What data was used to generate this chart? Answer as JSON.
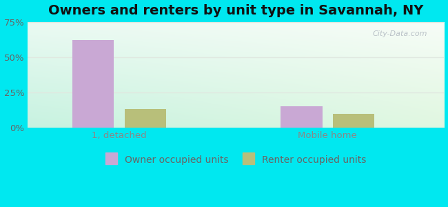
{
  "title": "Owners and renters by unit type in Savannah, NY",
  "categories": [
    "1, detached",
    "Mobile home"
  ],
  "owner_values": [
    62,
    15
  ],
  "renter_values": [
    13,
    10
  ],
  "owner_color": "#c9a8d4",
  "renter_color": "#b8bf7a",
  "ylim": [
    0,
    75
  ],
  "yticks": [
    0,
    25,
    50,
    75
  ],
  "ytick_labels": [
    "0%",
    "25%",
    "50%",
    "75%"
  ],
  "background_outer": "#00e8f0",
  "legend_owner": "Owner occupied units",
  "legend_renter": "Renter occupied units",
  "title_fontsize": 14,
  "tick_fontsize": 9.5,
  "legend_fontsize": 10,
  "watermark": "City-Data.com",
  "grid_color": "#e0e8e0",
  "grad_topleft": [
    0.92,
    0.98,
    0.95
  ],
  "grad_topright": [
    0.97,
    0.99,
    0.97
  ],
  "grad_bottomleft": [
    0.78,
    0.95,
    0.88
  ],
  "grad_bottomright": [
    0.88,
    0.97,
    0.88
  ]
}
